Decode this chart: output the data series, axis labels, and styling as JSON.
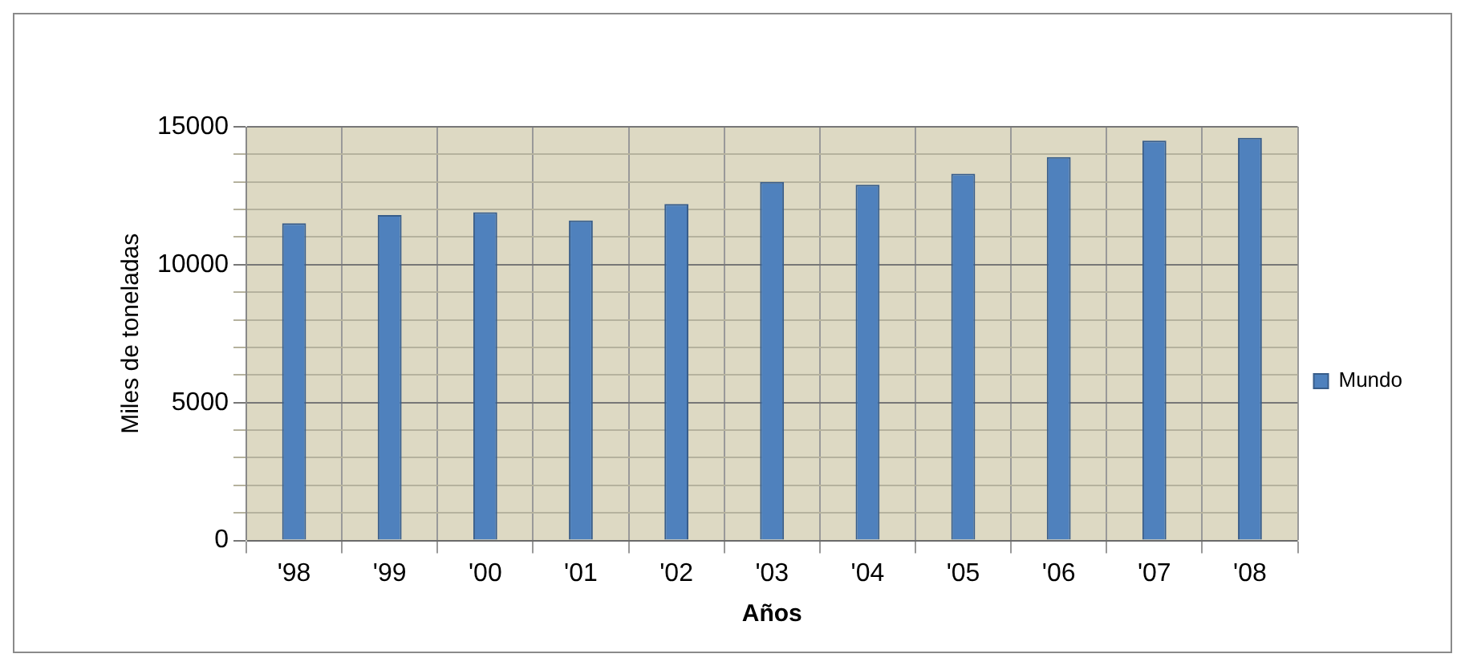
{
  "chart_data": {
    "type": "bar",
    "xlabel": "Años",
    "ylabel": "Miles de toneladas",
    "categories": [
      "'98",
      "'99",
      "'00",
      "'01",
      "'02",
      "'03",
      "'04",
      "'05",
      "'06",
      "'07",
      "'08"
    ],
    "series": [
      {
        "name": "Mundo",
        "color": "#4f81bd",
        "values": [
          11500,
          11800,
          11900,
          11600,
          12200,
          13000,
          12900,
          13300,
          13900,
          14500,
          14600
        ]
      }
    ],
    "ylim": [
      0,
      15000
    ],
    "yticks": [
      0,
      {
        "value": 1000,
        "label": null
      },
      {
        "value": 2000,
        "label": null
      },
      {
        "value": 3000,
        "label": null
      },
      {
        "value": 4000,
        "label": null
      },
      5000,
      {
        "value": 6000,
        "label": null
      },
      {
        "value": 7000,
        "label": null
      },
      {
        "value": 8000,
        "label": null
      },
      {
        "value": 9000,
        "label": null
      },
      10000,
      {
        "value": 11000,
        "label": null
      },
      {
        "value": 12000,
        "label": null
      },
      {
        "value": 13000,
        "label": null
      },
      {
        "value": 14000,
        "label": null
      },
      15000
    ],
    "grid": true,
    "legend": "right"
  }
}
